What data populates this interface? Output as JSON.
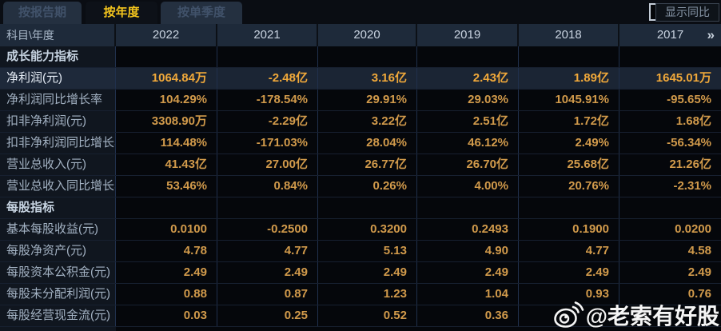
{
  "tabs": [
    {
      "label": "按报告期",
      "active": false
    },
    {
      "label": "按年度",
      "active": true
    },
    {
      "label": "按单季度",
      "active": false
    }
  ],
  "controls": {
    "show_yoy_label": "显示同比",
    "checkbox_checked": false
  },
  "table": {
    "corner_label": "科目\\年度",
    "years": [
      "2022",
      "2021",
      "2020",
      "2019",
      "2018",
      "2017"
    ],
    "more_icon": "»",
    "rows": [
      {
        "type": "section",
        "label": "成长能力指标",
        "values": [
          "",
          "",
          "",
          "",
          "",
          ""
        ]
      },
      {
        "type": "data",
        "highlight": true,
        "label": "净利润(元)",
        "values": [
          "1064.84万",
          "-2.48亿",
          "3.16亿",
          "2.43亿",
          "1.89亿",
          "1645.01万"
        ]
      },
      {
        "type": "data",
        "highlight": false,
        "label": "净利润同比增长率",
        "values": [
          "104.29%",
          "-178.54%",
          "29.91%",
          "29.03%",
          "1045.91%",
          "-95.65%"
        ]
      },
      {
        "type": "data",
        "highlight": false,
        "label": "扣非净利润(元)",
        "values": [
          "3308.90万",
          "-2.29亿",
          "3.22亿",
          "2.51亿",
          "1.72亿",
          "1.68亿"
        ]
      },
      {
        "type": "data",
        "highlight": false,
        "label": "扣非净利润同比增长率",
        "values": [
          "114.48%",
          "-171.03%",
          "28.04%",
          "46.12%",
          "2.49%",
          "-56.34%"
        ]
      },
      {
        "type": "data",
        "highlight": false,
        "label": "营业总收入(元)",
        "values": [
          "41.43亿",
          "27.00亿",
          "26.77亿",
          "26.70亿",
          "25.68亿",
          "21.26亿"
        ]
      },
      {
        "type": "data",
        "highlight": false,
        "label": "营业总收入同比增长率",
        "values": [
          "53.46%",
          "0.84%",
          "0.26%",
          "4.00%",
          "20.76%",
          "-2.31%"
        ]
      },
      {
        "type": "section",
        "label": "每股指标",
        "values": [
          "",
          "",
          "",
          "",
          "",
          ""
        ]
      },
      {
        "type": "data",
        "highlight": false,
        "label": "基本每股收益(元)",
        "values": [
          "0.0100",
          "-0.2500",
          "0.3200",
          "0.2493",
          "0.1900",
          "0.0200"
        ]
      },
      {
        "type": "data",
        "highlight": false,
        "label": "每股净资产(元)",
        "values": [
          "4.78",
          "4.77",
          "5.13",
          "4.90",
          "4.77",
          "4.58"
        ]
      },
      {
        "type": "data",
        "highlight": false,
        "label": "每股资本公积金(元)",
        "values": [
          "2.49",
          "2.49",
          "2.49",
          "2.49",
          "2.49",
          "2.49"
        ]
      },
      {
        "type": "data",
        "highlight": false,
        "label": "每股未分配利润(元)",
        "values": [
          "0.88",
          "0.87",
          "1.23",
          "1.04",
          "0.93",
          "0.76"
        ]
      },
      {
        "type": "data",
        "highlight": false,
        "label": "每股经营现金流(元)",
        "values": [
          "0.03",
          "0.25",
          "0.52",
          "0.36",
          "",
          ""
        ]
      }
    ]
  },
  "watermark": {
    "text": "@老索有好股",
    "icon": "weibo-icon"
  },
  "colors": {
    "value_orange": "#d19a4b",
    "highlight_orange": "#f1a93a",
    "tab_active_yellow": "#f4c51d",
    "header_bg": "#1e2a3a",
    "highlight_row_bg": "#1b2534",
    "label_col_bg": "#10161f"
  }
}
